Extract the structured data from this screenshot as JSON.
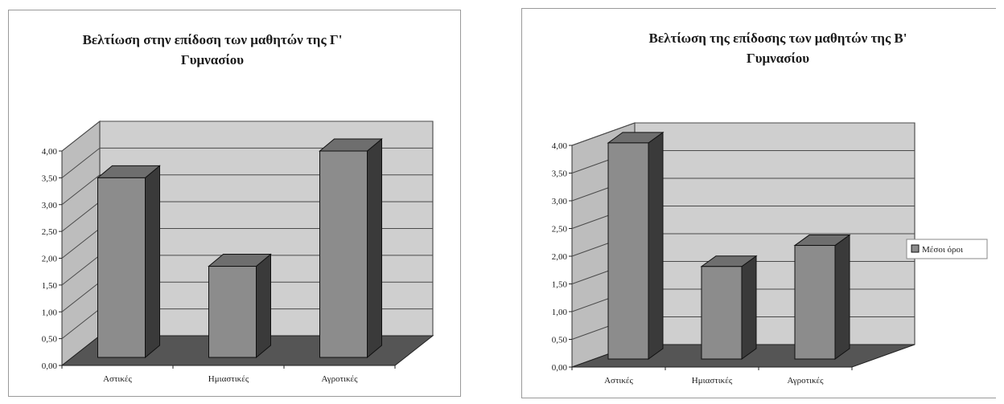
{
  "chart_data": [
    {
      "type": "bar",
      "title": "Βελτίωση στην επίδοση των μαθητών της Γ' Γυμνασίου",
      "title_lines": [
        "Βελτίωση στην επίδοση των μαθητών της Γ'",
        "Γυμνασίου"
      ],
      "categories": [
        "Αστικές",
        "Ημιαστικές",
        "Αγροτικές"
      ],
      "values": [
        3.35,
        1.7,
        3.85
      ],
      "ylim": [
        0,
        4
      ],
      "yticks": [
        "0,00",
        "0,50",
        "1,00",
        "1,50",
        "2,00",
        "2,50",
        "3,00",
        "3,50",
        "4,00"
      ],
      "grid": true,
      "three_d": true,
      "legend": ""
    },
    {
      "type": "bar",
      "title": "Βελτίωση της επίδοσης των μαθητών της Β' Γυμνασίου",
      "title_lines": [
        "Βελτίωση της επίδοσης των μαθητών της Β'",
        "Γυμνασίου"
      ],
      "categories": [
        "Αστικές",
        "Ημιαστικές",
        "Αγροτικές"
      ],
      "values": [
        3.9,
        1.67,
        2.05
      ],
      "ylim": [
        0,
        4
      ],
      "yticks": [
        "0,00",
        "0,50",
        "1,00",
        "1,50",
        "2,00",
        "2,50",
        "3,00",
        "3,50",
        "4,00"
      ],
      "grid": true,
      "three_d": true,
      "legend": "Μέσοι όροι",
      "legend_position": "right"
    }
  ],
  "colors": {
    "bar_front": "#8c8c8c",
    "bar_side": "#3a3a3a",
    "bar_top": "#6e6e6e",
    "back_wall": "#cfcfcf",
    "side_wall": "#bdbdbd",
    "floor": "#555555",
    "grid": "#4a4a4a"
  }
}
